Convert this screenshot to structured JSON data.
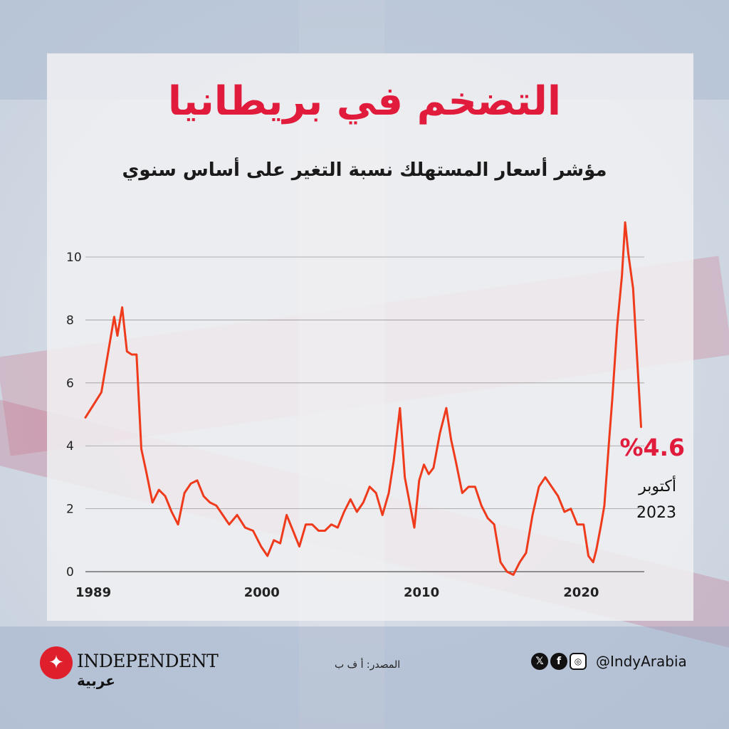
{
  "title": "التضخم في بريطانيا",
  "subtitle": "مؤشر أسعار المستهلك نسبة التغير على أساس سنوي",
  "colors": {
    "accent": "#e11b3b",
    "line": "#ef3b1c",
    "background": "#d6dde6"
  },
  "chart_data": {
    "type": "line",
    "title": "التضخم في بريطانيا",
    "subtitle": "مؤشر أسعار المستهلك نسبة التغير على أساس سنوي",
    "xlabel": "",
    "ylabel": "",
    "x_ticks": [
      "1989",
      "2000",
      "2010",
      "2020"
    ],
    "x_tick_values": [
      1989,
      2000,
      2010,
      2020
    ],
    "y_ticks": [
      "0",
      "2",
      "4",
      "6",
      "8",
      "10"
    ],
    "y_tick_values": [
      0,
      2,
      4,
      6,
      8,
      10
    ],
    "xlim": [
      1989,
      2024
    ],
    "ylim": [
      0,
      11.2
    ],
    "grid": true,
    "series": [
      {
        "values": [
          [
            1989.0,
            4.9
          ],
          [
            1989.5,
            5.3
          ],
          [
            1990.0,
            5.7
          ],
          [
            1990.4,
            6.9
          ],
          [
            1990.8,
            8.1
          ],
          [
            1991.0,
            7.5
          ],
          [
            1991.3,
            8.4
          ],
          [
            1991.6,
            7.0
          ],
          [
            1991.9,
            6.9
          ],
          [
            1992.2,
            6.9
          ],
          [
            1992.5,
            3.9
          ],
          [
            1992.8,
            3.2
          ],
          [
            1993.2,
            2.2
          ],
          [
            1993.6,
            2.6
          ],
          [
            1994.0,
            2.4
          ],
          [
            1994.4,
            1.9
          ],
          [
            1994.8,
            1.5
          ],
          [
            1995.2,
            2.5
          ],
          [
            1995.6,
            2.8
          ],
          [
            1996.0,
            2.9
          ],
          [
            1996.4,
            2.4
          ],
          [
            1996.8,
            2.2
          ],
          [
            1997.2,
            2.1
          ],
          [
            1997.6,
            1.8
          ],
          [
            1998.0,
            1.5
          ],
          [
            1998.5,
            1.8
          ],
          [
            1999.0,
            1.4
          ],
          [
            1999.5,
            1.3
          ],
          [
            2000.0,
            0.8
          ],
          [
            2000.4,
            0.5
          ],
          [
            2000.8,
            1.0
          ],
          [
            2001.2,
            0.9
          ],
          [
            2001.6,
            1.8
          ],
          [
            2002.0,
            1.3
          ],
          [
            2002.4,
            0.8
          ],
          [
            2002.8,
            1.5
          ],
          [
            2003.2,
            1.5
          ],
          [
            2003.6,
            1.3
          ],
          [
            2004.0,
            1.3
          ],
          [
            2004.4,
            1.5
          ],
          [
            2004.8,
            1.4
          ],
          [
            2005.2,
            1.9
          ],
          [
            2005.6,
            2.3
          ],
          [
            2006.0,
            1.9
          ],
          [
            2006.4,
            2.2
          ],
          [
            2006.8,
            2.7
          ],
          [
            2007.2,
            2.5
          ],
          [
            2007.6,
            1.8
          ],
          [
            2008.0,
            2.5
          ],
          [
            2008.3,
            3.5
          ],
          [
            2008.7,
            5.2
          ],
          [
            2009.0,
            3.0
          ],
          [
            2009.3,
            2.2
          ],
          [
            2009.6,
            1.4
          ],
          [
            2009.9,
            2.9
          ],
          [
            2010.2,
            3.4
          ],
          [
            2010.5,
            3.1
          ],
          [
            2010.8,
            3.3
          ],
          [
            2011.2,
            4.4
          ],
          [
            2011.6,
            5.2
          ],
          [
            2011.9,
            4.2
          ],
          [
            2012.2,
            3.5
          ],
          [
            2012.6,
            2.5
          ],
          [
            2013.0,
            2.7
          ],
          [
            2013.4,
            2.7
          ],
          [
            2013.8,
            2.1
          ],
          [
            2014.2,
            1.7
          ],
          [
            2014.6,
            1.5
          ],
          [
            2015.0,
            0.3
          ],
          [
            2015.4,
            0.0
          ],
          [
            2015.8,
            -0.1
          ],
          [
            2016.2,
            0.3
          ],
          [
            2016.6,
            0.6
          ],
          [
            2017.0,
            1.8
          ],
          [
            2017.4,
            2.7
          ],
          [
            2017.8,
            3.0
          ],
          [
            2018.2,
            2.7
          ],
          [
            2018.6,
            2.4
          ],
          [
            2019.0,
            1.9
          ],
          [
            2019.4,
            2.0
          ],
          [
            2019.8,
            1.5
          ],
          [
            2020.2,
            1.5
          ],
          [
            2020.5,
            0.5
          ],
          [
            2020.8,
            0.3
          ],
          [
            2021.0,
            0.7
          ],
          [
            2021.3,
            1.5
          ],
          [
            2021.5,
            2.1
          ],
          [
            2021.8,
            4.2
          ],
          [
            2022.0,
            5.5
          ],
          [
            2022.3,
            7.8
          ],
          [
            2022.6,
            9.4
          ],
          [
            2022.8,
            11.1
          ],
          [
            2023.0,
            10.1
          ],
          [
            2023.3,
            9.0
          ],
          [
            2023.55,
            6.8
          ],
          [
            2023.8,
            4.6
          ]
        ]
      }
    ],
    "annotation": {
      "value_label": "%4.6",
      "month": "أكتوبر",
      "year": "2023"
    }
  },
  "footer": {
    "brand": "INDEPENDENT",
    "brand_arabic": "عربية",
    "source": "المصدر: أ ف ب",
    "handle": "@IndyArabia",
    "social_icons": [
      "x-icon",
      "facebook-icon",
      "instagram-icon"
    ]
  }
}
